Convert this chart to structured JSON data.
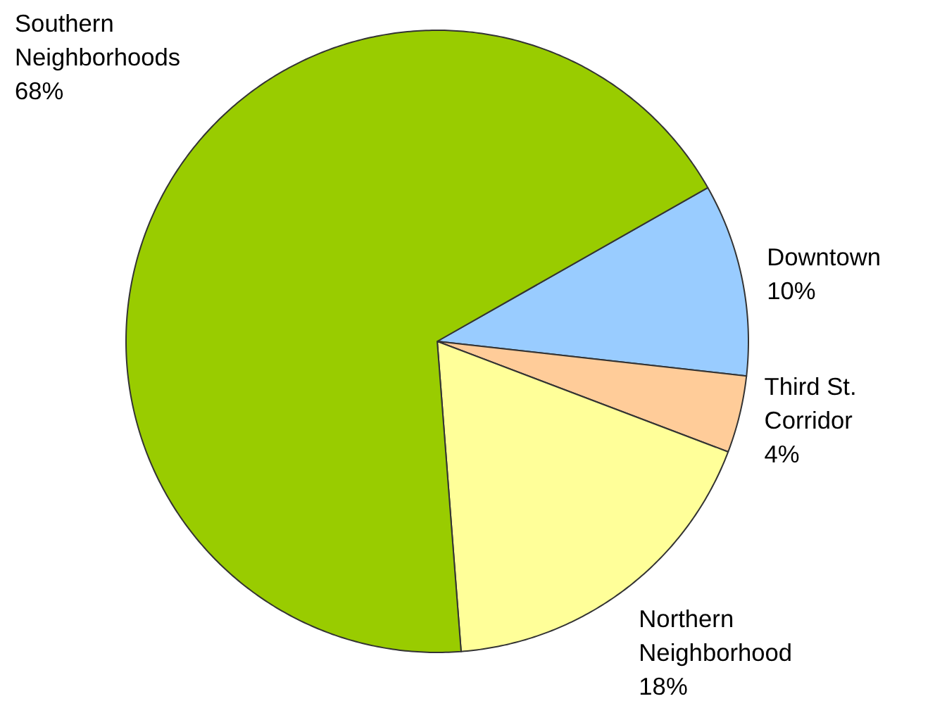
{
  "chart_data": {
    "type": "pie",
    "categories": [
      "Downtown",
      "Third St. Corridor",
      "Northern Neighborhood",
      "Southern Neighborhoods"
    ],
    "values": [
      10,
      4,
      18,
      68
    ],
    "value_labels": [
      "10%",
      "4%",
      "18%",
      "68%"
    ],
    "colors": [
      "#99ccff",
      "#ffcc99",
      "#ffff99",
      "#99cc00"
    ]
  }
}
